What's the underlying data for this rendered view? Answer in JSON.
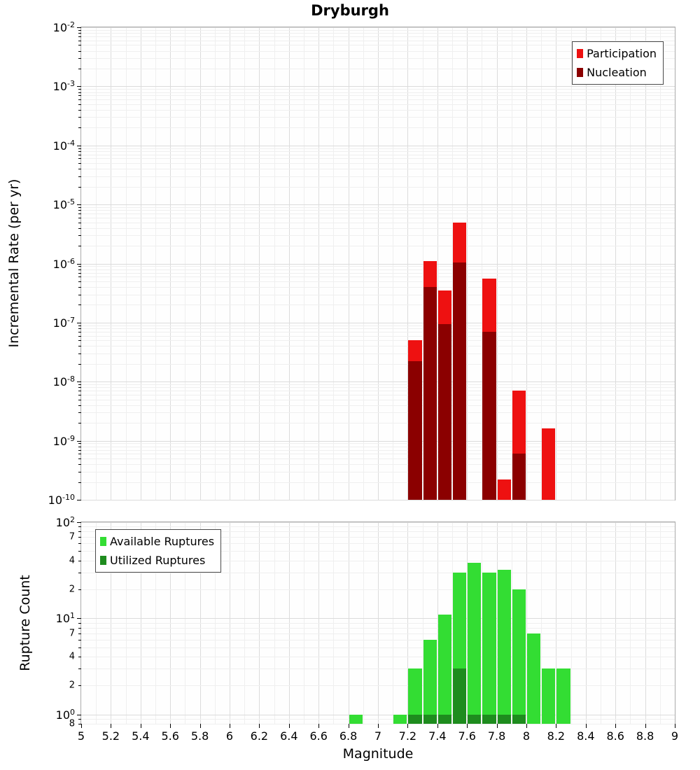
{
  "title": "Dryburgh",
  "chart_data": [
    {
      "type": "bar",
      "title": "Dryburgh",
      "ylabel": "Incremental Rate (per yr)",
      "xlabel": "Magnitude",
      "yscale": "log",
      "ylim": [
        1e-10,
        0.01
      ],
      "xlim": [
        5,
        9
      ],
      "x_tick_step": 0.2,
      "bar_bin_width": 0.1,
      "grid": true,
      "legend_position": "top-right",
      "y_labeled_mantissas": [],
      "categories": [
        7.25,
        7.35,
        7.45,
        7.55,
        7.75,
        7.85,
        7.95,
        8.15
      ],
      "series": [
        {
          "name": "Participation",
          "color": "#ee1111",
          "values": [
            5e-08,
            1.1e-06,
            3.5e-07,
            5e-06,
            5.5e-07,
            2.2e-10,
            7e-09,
            1.6e-09
          ]
        },
        {
          "name": "Nucleation",
          "color": "#8b0000",
          "values": [
            2.2e-08,
            4e-07,
            9.5e-08,
            1.05e-06,
            7e-08,
            null,
            6e-10,
            null
          ]
        }
      ]
    },
    {
      "type": "bar",
      "title": "",
      "ylabel": "Rupture Count",
      "xlabel": "Magnitude",
      "yscale": "log",
      "ylim": [
        0.8,
        100
      ],
      "xlim": [
        5,
        9
      ],
      "x_tick_step": 0.2,
      "bar_bin_width": 0.1,
      "grid": true,
      "legend_position": "top-left",
      "y_labeled_mantissas": [
        2,
        4,
        7
      ],
      "categories": [
        6.85,
        7.15,
        7.25,
        7.35,
        7.45,
        7.55,
        7.65,
        7.75,
        7.85,
        7.95,
        8.05,
        8.15,
        8.25
      ],
      "series": [
        {
          "name": "Available Ruptures",
          "color": "#33dd33",
          "values": [
            1,
            1,
            3,
            6,
            11,
            30,
            38,
            30,
            32,
            20,
            7,
            3,
            3
          ]
        },
        {
          "name": "Utilized Ruptures",
          "color": "#1e8c1e",
          "values": [
            null,
            null,
            1,
            1,
            1,
            3,
            1,
            1,
            1,
            1,
            null,
            null,
            null
          ]
        }
      ]
    }
  ]
}
